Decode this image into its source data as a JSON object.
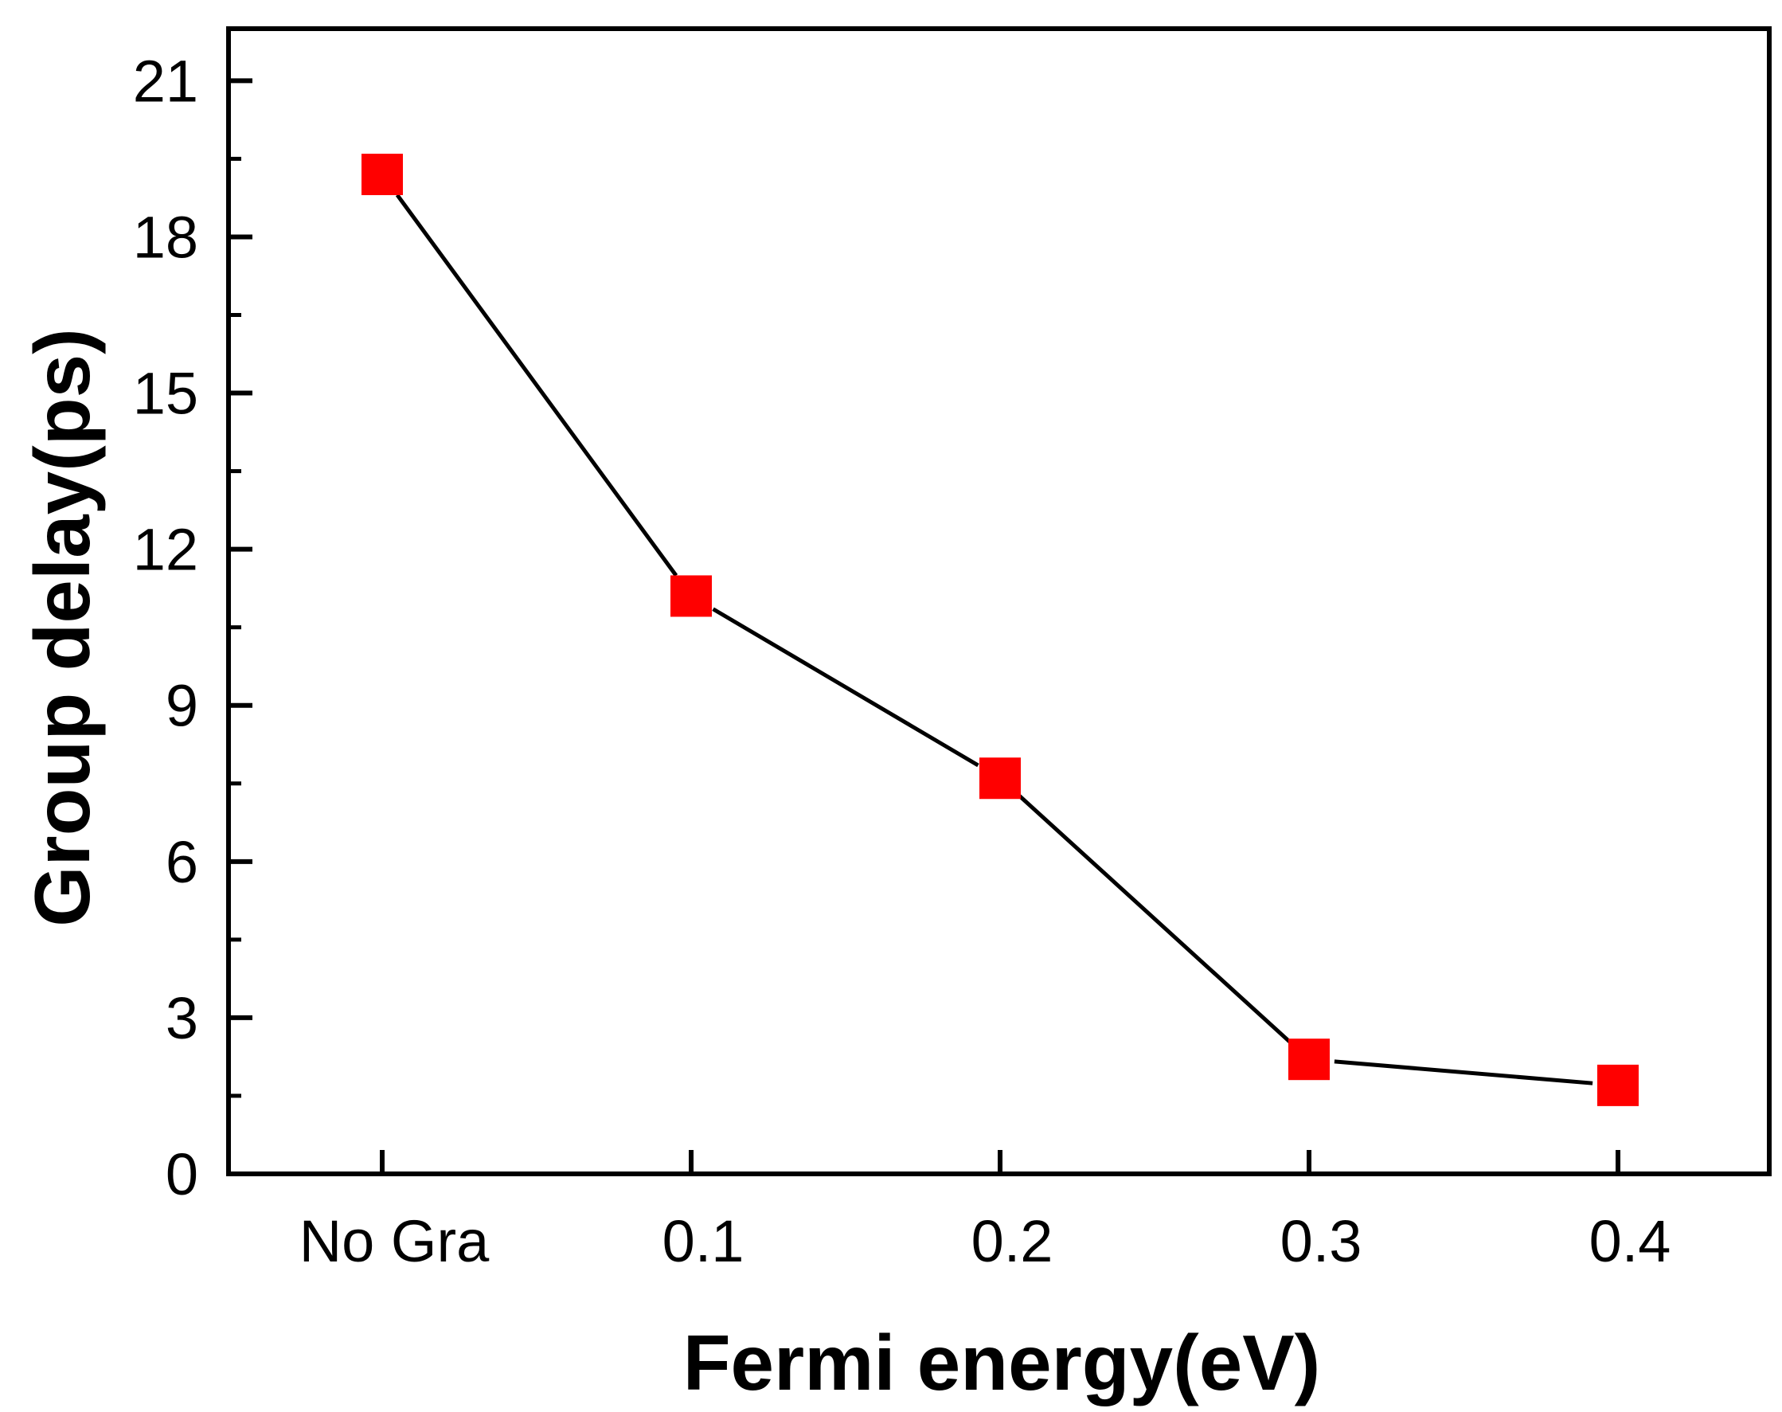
{
  "chart_data": {
    "type": "line",
    "title": "",
    "xlabel": "Fermi energy(eV)",
    "ylabel": "Group delay(ps)",
    "categories": [
      "No Gra",
      "0.1",
      "0.2",
      "0.3",
      "0.4"
    ],
    "series": [
      {
        "name": "Group delay",
        "values": [
          19.2,
          11.1,
          7.6,
          2.2,
          1.7
        ]
      }
    ],
    "ylim": [
      0,
      22
    ],
    "yticks": [
      0,
      3,
      6,
      9,
      12,
      15,
      18,
      21
    ],
    "ytick_labels": [
      "0",
      "3",
      "6",
      "9",
      "12",
      "15",
      "18",
      "21"
    ],
    "grid": false,
    "legend": "none",
    "colors": {
      "marker": "#ff0000",
      "line": "#000000",
      "axes": "#000000"
    }
  }
}
